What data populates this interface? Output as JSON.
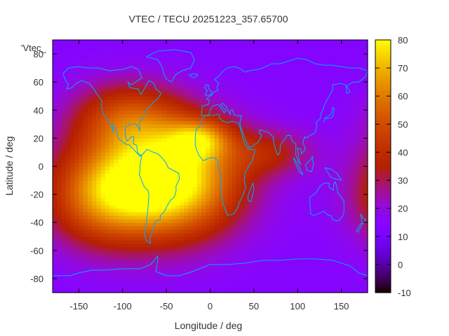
{
  "chart_data": {
    "type": "heatmap",
    "title": "VTEC / TECU 20251223_357.65700",
    "xlabel": "Longitude / deg",
    "ylabel": "Latitude / deg",
    "xlim": [
      -180,
      180
    ],
    "ylim": [
      -90,
      90
    ],
    "x_ticks": [
      -150,
      -100,
      -50,
      0,
      50,
      100,
      150
    ],
    "y_ticks": [
      -80,
      -60,
      -40,
      -20,
      0,
      20,
      40,
      60,
      80
    ],
    "colorbar": {
      "label": "'Vtec_",
      "range": [
        -10,
        80
      ],
      "ticks": [
        -10,
        0,
        10,
        20,
        30,
        40,
        50,
        60,
        70,
        80
      ]
    },
    "grid": false,
    "background_level": 14,
    "features": [
      {
        "name": "americas-atlantic-equatorial-maximum",
        "lon": -45,
        "lat": -10,
        "peak": 72,
        "sigma_lon": 55,
        "sigma_lat": 28
      },
      {
        "name": "eastern-pacific-enhancement",
        "lon": -125,
        "lat": -20,
        "peak": 40,
        "sigma_lon": 45,
        "sigma_lat": 25
      },
      {
        "name": "north-america-enhancement",
        "lon": -95,
        "lat": 35,
        "peak": 30,
        "sigma_lon": 45,
        "sigma_lat": 18
      },
      {
        "name": "atlantic-northern-crest",
        "lon": -10,
        "lat": 20,
        "peak": 30,
        "sigma_lon": 25,
        "sigma_lat": 10
      },
      {
        "name": "indian-ocean-tail",
        "lon": 70,
        "lat": 10,
        "peak": 18,
        "sigma_lon": 35,
        "sigma_lat": 12
      }
    ],
    "overlay": "world coastlines"
  }
}
